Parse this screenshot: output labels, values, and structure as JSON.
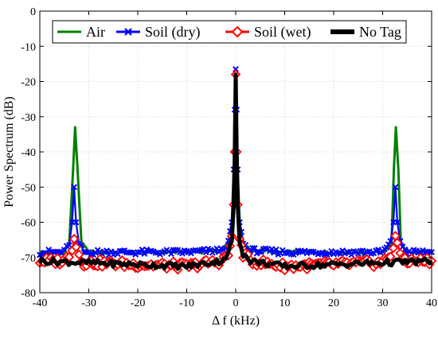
{
  "chart_data": {
    "type": "line",
    "title": "",
    "xlabel": "Δ f (kHz)",
    "ylabel": "Power Spectrum (dB)",
    "xlim": [
      -40,
      40
    ],
    "ylim": [
      -80,
      0
    ],
    "xticks": [
      -40,
      -30,
      -20,
      -10,
      0,
      10,
      20,
      30,
      40
    ],
    "yticks": [
      0,
      -10,
      -20,
      -30,
      -40,
      -50,
      -60,
      -70,
      -80
    ],
    "grid": true,
    "legend": {
      "placement": "top",
      "orientation": "horizontal",
      "entries": [
        "Air",
        "Soil (dry)",
        "Soil (wet)",
        "No Tag"
      ]
    },
    "colors": {
      "air": "#008000",
      "soil_dry": "#0000ff",
      "soil_wet": "#ff0000",
      "no_tag": "#000000"
    },
    "series": [
      {
        "name": "Air",
        "color": "#008000",
        "marker": "none",
        "x": [
          -40,
          -35,
          -34,
          -33.2,
          -32.8,
          -32.3,
          -31.5,
          -30,
          -20,
          -10,
          -3,
          -1.5,
          -0.8,
          -0.4,
          -0.2,
          0,
          0.2,
          0.4,
          0.8,
          1.5,
          3,
          10,
          20,
          30,
          31.8,
          32.3,
          32.7,
          33.2,
          33.7,
          35,
          40
        ],
        "y": [
          -68.5,
          -68.5,
          -66,
          -45,
          -33,
          -45,
          -66,
          -68.5,
          -68.5,
          -68.5,
          -68,
          -66,
          -60,
          -45,
          -28,
          -16.5,
          -28,
          -45,
          -60,
          -66,
          -68,
          -68.5,
          -68.5,
          -68.5,
          -66,
          -45,
          -33,
          -45,
          -66,
          -68.5,
          -68.5
        ]
      },
      {
        "name": "Soil (dry)",
        "color": "#0000ff",
        "marker": "x",
        "x": [
          -40,
          -35,
          -34,
          -33.4,
          -33,
          -32.6,
          -32,
          -31,
          -30,
          -20,
          -10,
          -3,
          -1.5,
          -0.8,
          -0.4,
          -0.2,
          0,
          0.2,
          0.4,
          0.8,
          1.5,
          3,
          10,
          20,
          30,
          31.6,
          32.2,
          32.6,
          33,
          33.6,
          35,
          40
        ],
        "y": [
          -68.5,
          -68.5,
          -66,
          -60,
          -50,
          -60,
          -66,
          -68.5,
          -68.5,
          -68.5,
          -68.5,
          -68,
          -66,
          -60,
          -45,
          -28,
          -16.5,
          -28,
          -45,
          -60,
          -66,
          -68,
          -68.5,
          -68.5,
          -68.5,
          -66,
          -60,
          -50,
          -60,
          -66,
          -68.5,
          -68.5
        ]
      },
      {
        "name": "Soil (wet)",
        "color": "#ff0000",
        "marker": "diamond",
        "x": [
          -40,
          -35,
          -34,
          -33.4,
          -33,
          -32.6,
          -32,
          -31,
          -30,
          -20,
          -10,
          -3,
          -1.5,
          -0.8,
          -0.4,
          -0.2,
          0,
          0.2,
          0.4,
          0.8,
          1.5,
          3,
          10,
          20,
          30,
          31.6,
          32.2,
          32.6,
          33,
          33.6,
          35,
          40
        ],
        "y": [
          -71,
          -71,
          -69,
          -67,
          -64,
          -67,
          -69,
          -71.5,
          -71.5,
          -72,
          -72.5,
          -71,
          -69,
          -65,
          -55,
          -40,
          -18,
          -40,
          -55,
          -65,
          -69,
          -71,
          -72.5,
          -72,
          -71.5,
          -69,
          -67,
          -64,
          -67,
          -69,
          -71,
          -71
        ]
      },
      {
        "name": "No Tag",
        "color": "#000000",
        "marker": "none",
        "x": [
          -40,
          -30,
          -20,
          -10,
          -3,
          -1.5,
          -0.8,
          -0.4,
          -0.2,
          0,
          0.2,
          0.4,
          0.8,
          1.5,
          3,
          10,
          20,
          30,
          40
        ],
        "y": [
          -71,
          -71.5,
          -72,
          -72.5,
          -71,
          -69,
          -65,
          -55,
          -40,
          -18,
          -40,
          -55,
          -65,
          -69,
          -71,
          -72.5,
          -72,
          -71.5,
          -71
        ]
      }
    ]
  }
}
